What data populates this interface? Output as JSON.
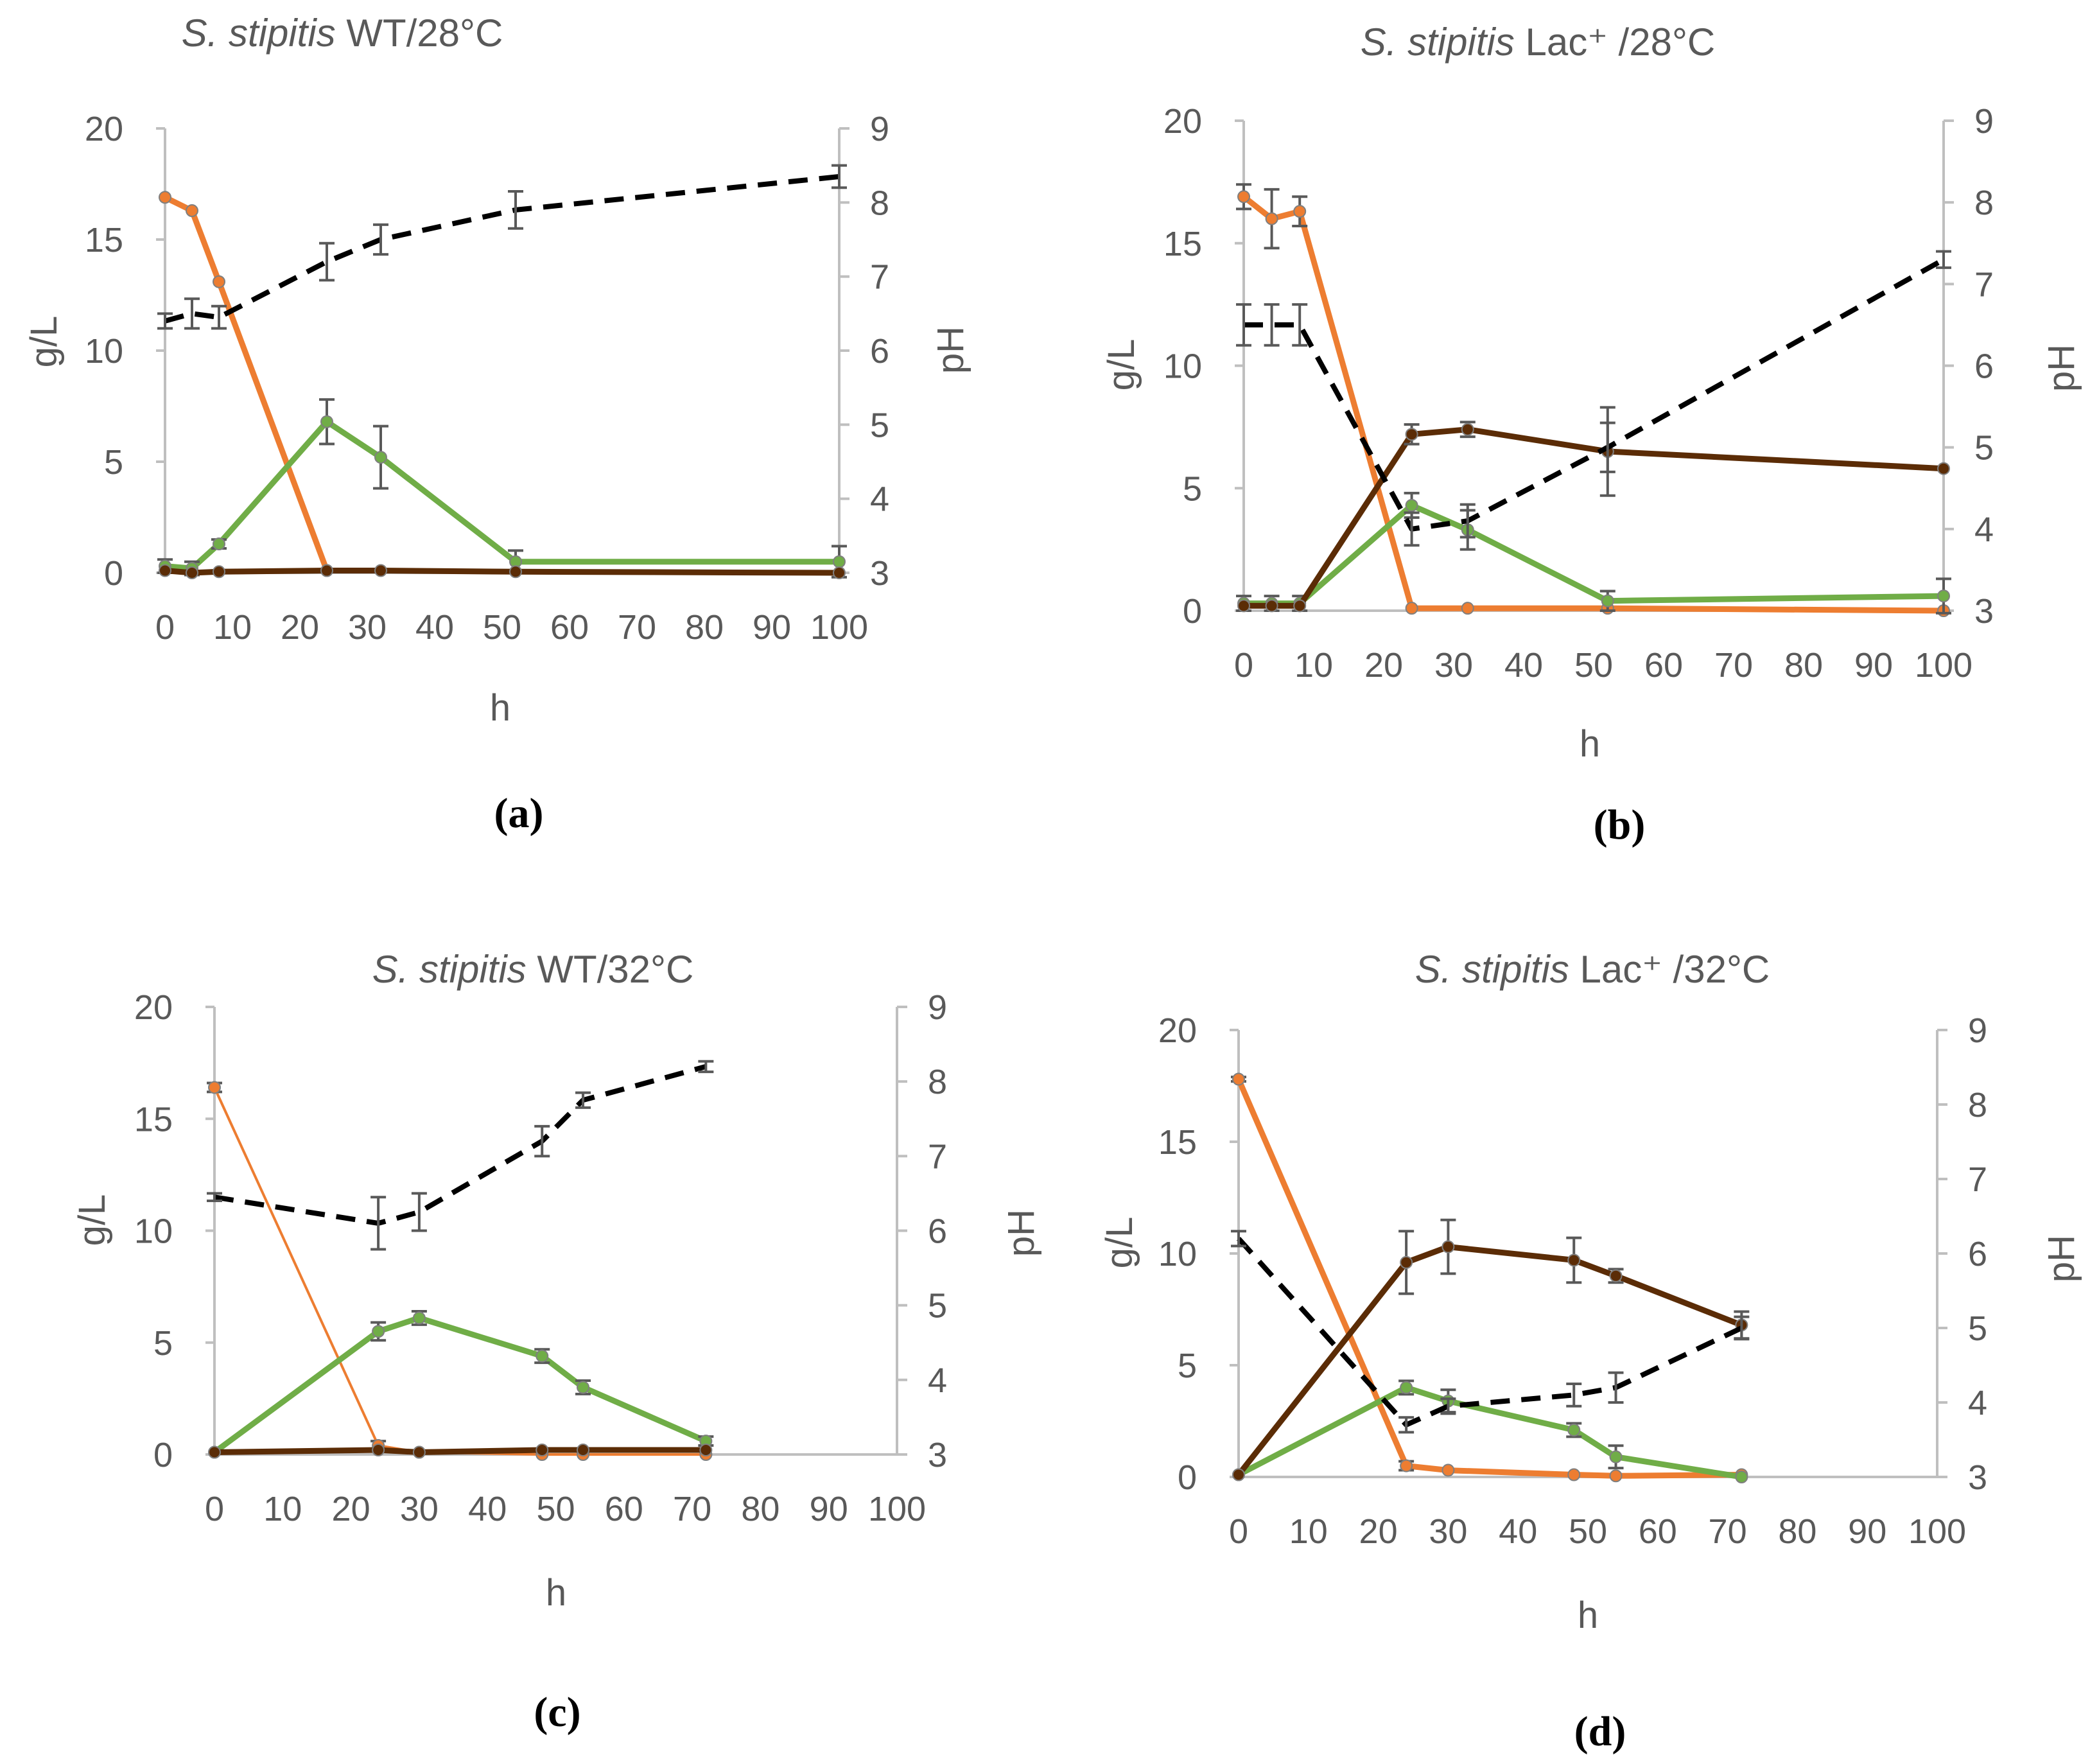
{
  "figure": {
    "panel_labels": [
      "(a)",
      "(b)",
      "(c)",
      "(d)"
    ]
  },
  "colors": {
    "lactose": "#ED7D31",
    "ethanol": "#70AD47",
    "lactic_acid": "#5B2C06",
    "pH": "#000000",
    "axis": "#BFBFBF",
    "error_bar": "#595959"
  },
  "chart_data": [
    {
      "type": "line",
      "title_italic": "S. stipitis",
      "title_rest": "WT/28°C",
      "xlabel": "h",
      "ylabel": "g/L",
      "y2label": "pH",
      "xlim": [
        0,
        100
      ],
      "ylim": [
        0,
        20
      ],
      "y2lim": [
        3,
        9
      ],
      "xticks": [
        0,
        10,
        20,
        30,
        40,
        50,
        60,
        70,
        80,
        90,
        100
      ],
      "yticks": [
        0,
        5,
        10,
        15,
        20
      ],
      "y2ticks": [
        3,
        4,
        5,
        6,
        7,
        8,
        9
      ],
      "series": [
        {
          "key": "lactose",
          "axis": "left",
          "style": "solid",
          "markers": true,
          "width": 9,
          "x": [
            0,
            4,
            8,
            24
          ],
          "y": [
            16.9,
            16.3,
            13.1,
            0.1
          ]
        },
        {
          "key": "ethanol",
          "axis": "left",
          "style": "solid",
          "markers": true,
          "width": 9,
          "x": [
            0,
            4,
            8,
            24,
            32,
            52,
            100
          ],
          "y": [
            0.3,
            0.2,
            1.3,
            6.8,
            5.2,
            0.5,
            0.5
          ],
          "err": [
            0.3,
            0.3,
            0.2,
            1.0,
            1.4,
            0.5,
            0.7
          ]
        },
        {
          "key": "lactic_acid",
          "axis": "left",
          "style": "solid",
          "markers": true,
          "width": 9,
          "x": [
            0,
            4,
            8,
            24,
            32,
            52,
            100
          ],
          "y": [
            0.1,
            0.0,
            0.05,
            0.1,
            0.1,
            0.05,
            0.0
          ]
        },
        {
          "key": "pH",
          "axis": "right",
          "style": "dashed",
          "markers": false,
          "width": 8,
          "x": [
            0,
            4,
            8,
            24,
            32,
            52,
            100
          ],
          "y": [
            6.4,
            6.5,
            6.45,
            7.2,
            7.5,
            7.9,
            8.35
          ],
          "err": [
            0.1,
            0.2,
            0.15,
            0.25,
            0.2,
            0.25,
            0.15
          ]
        }
      ]
    },
    {
      "type": "line",
      "title_italic": "S. stipitis",
      "title_rest": "Lac⁺ /28°C",
      "xlabel": "h",
      "ylabel": "g/L",
      "y2label": "pH",
      "xlim": [
        0,
        100
      ],
      "ylim": [
        0,
        20
      ],
      "y2lim": [
        3,
        9
      ],
      "xticks": [
        0,
        10,
        20,
        30,
        40,
        50,
        60,
        70,
        80,
        90,
        100
      ],
      "yticks": [
        0,
        5,
        10,
        15,
        20
      ],
      "y2ticks": [
        3,
        4,
        5,
        6,
        7,
        8,
        9
      ],
      "series": [
        {
          "key": "lactose",
          "axis": "left",
          "style": "solid",
          "markers": true,
          "width": 9,
          "x": [
            0,
            4,
            8,
            24,
            32,
            52,
            100
          ],
          "y": [
            16.9,
            16.0,
            16.3,
            0.1,
            0.1,
            0.1,
            0.0
          ],
          "err": [
            0.5,
            1.2,
            0.6,
            0,
            0,
            0,
            0
          ]
        },
        {
          "key": "ethanol",
          "axis": "left",
          "style": "solid",
          "markers": true,
          "width": 9,
          "x": [
            0,
            4,
            8,
            24,
            32,
            52,
            100
          ],
          "y": [
            0.3,
            0.3,
            0.3,
            4.3,
            3.3,
            0.4,
            0.6
          ],
          "err": [
            0.3,
            0.3,
            0.3,
            0.5,
            0.8,
            0.4,
            0.7
          ]
        },
        {
          "key": "lactic_acid",
          "axis": "left",
          "style": "solid",
          "markers": true,
          "width": 9,
          "x": [
            0,
            4,
            8,
            24,
            32,
            52,
            100
          ],
          "y": [
            0.2,
            0.2,
            0.2,
            7.2,
            7.4,
            6.5,
            5.8
          ],
          "err": [
            0,
            0,
            0,
            0.4,
            0.3,
            1.8,
            0
          ]
        },
        {
          "key": "pH",
          "axis": "right",
          "style": "dashed",
          "markers": false,
          "width": 8,
          "x": [
            0,
            4,
            8,
            24,
            32,
            52,
            100
          ],
          "y": [
            6.5,
            6.5,
            6.5,
            4.0,
            4.1,
            5.0,
            7.3
          ],
          "err": [
            0.25,
            0.25,
            0.25,
            0.2,
            0.2,
            0.3,
            0.1
          ]
        }
      ]
    },
    {
      "type": "line",
      "title_italic": "S. stipitis",
      "title_rest": "WT/32°C",
      "xlabel": "h",
      "ylabel": "g/L",
      "y2label": "pH",
      "xlim": [
        0,
        100
      ],
      "ylim": [
        0,
        20
      ],
      "y2lim": [
        3,
        9
      ],
      "xticks": [
        0,
        10,
        20,
        30,
        40,
        50,
        60,
        70,
        80,
        90,
        100
      ],
      "yticks": [
        0,
        5,
        10,
        15,
        20
      ],
      "y2ticks": [
        3,
        4,
        5,
        6,
        7,
        8,
        9
      ],
      "series": [
        {
          "key": "lactose",
          "axis": "left",
          "style": "solid",
          "markers": true,
          "width": 4,
          "x": [
            0,
            24,
            30,
            48,
            54,
            72
          ],
          "y": [
            16.4,
            0.4,
            0.1,
            0.0,
            0.0,
            0.0
          ],
          "err": [
            0.2,
            0.2,
            0,
            0,
            0,
            0
          ]
        },
        {
          "key": "ethanol",
          "axis": "left",
          "style": "solid",
          "markers": true,
          "width": 9,
          "x": [
            0,
            24,
            30,
            48,
            54,
            72
          ],
          "y": [
            0.1,
            5.5,
            6.1,
            4.4,
            3.0,
            0.6
          ],
          "err": [
            0,
            0.4,
            0.3,
            0.3,
            0.3,
            0.2
          ]
        },
        {
          "key": "lactic_acid",
          "axis": "left",
          "style": "solid",
          "markers": true,
          "width": 9,
          "x": [
            0,
            24,
            30,
            48,
            54,
            72
          ],
          "y": [
            0.1,
            0.2,
            0.1,
            0.2,
            0.2,
            0.2
          ]
        },
        {
          "key": "pH",
          "axis": "right",
          "style": "dashed",
          "markers": false,
          "width": 8,
          "x": [
            0,
            24,
            30,
            48,
            54,
            72
          ],
          "y": [
            6.45,
            6.1,
            6.25,
            7.2,
            7.75,
            8.2
          ],
          "err": [
            0.05,
            0.35,
            0.25,
            0.2,
            0.1,
            0.07
          ]
        }
      ]
    },
    {
      "type": "line",
      "title_italic": "S. stipitis",
      "title_rest": "Lac⁺ /32°C",
      "xlabel": "h",
      "ylabel": "g/L",
      "y2label": "pH",
      "xlim": [
        0,
        100
      ],
      "ylim": [
        0,
        20
      ],
      "y2lim": [
        3,
        9
      ],
      "xticks": [
        0,
        10,
        20,
        30,
        40,
        50,
        60,
        70,
        80,
        90,
        100
      ],
      "yticks": [
        0,
        5,
        10,
        15,
        20
      ],
      "y2ticks": [
        3,
        4,
        5,
        6,
        7,
        8,
        9
      ],
      "series": [
        {
          "key": "lactose",
          "axis": "left",
          "style": "solid",
          "markers": true,
          "width": 9,
          "x": [
            0,
            24,
            30,
            48,
            54,
            72
          ],
          "y": [
            17.8,
            0.5,
            0.3,
            0.1,
            0.05,
            0.1
          ],
          "err": [
            0.1,
            0.2,
            0,
            0,
            0,
            0
          ]
        },
        {
          "key": "ethanol",
          "axis": "left",
          "style": "solid",
          "markers": true,
          "width": 9,
          "x": [
            0,
            24,
            30,
            48,
            54,
            72
          ],
          "y": [
            0.1,
            4.0,
            3.4,
            2.1,
            0.9,
            0.0
          ],
          "err": [
            0,
            0.3,
            0.5,
            0.3,
            0.5,
            0
          ]
        },
        {
          "key": "lactic_acid",
          "axis": "left",
          "style": "solid",
          "markers": true,
          "width": 9,
          "x": [
            0,
            24,
            30,
            48,
            54,
            72
          ],
          "y": [
            0.1,
            9.6,
            10.3,
            9.7,
            9.0,
            6.8
          ],
          "err": [
            0,
            1.4,
            1.2,
            1.0,
            0.3,
            0.6
          ]
        },
        {
          "key": "pH",
          "axis": "right",
          "style": "dashed",
          "markers": false,
          "width": 8,
          "x": [
            0,
            24,
            30,
            48,
            54,
            72
          ],
          "y": [
            6.2,
            3.7,
            3.95,
            4.1,
            4.2,
            5.0
          ],
          "err": [
            0.1,
            0.1,
            0.1,
            0.15,
            0.2,
            0.15
          ]
        }
      ]
    }
  ]
}
